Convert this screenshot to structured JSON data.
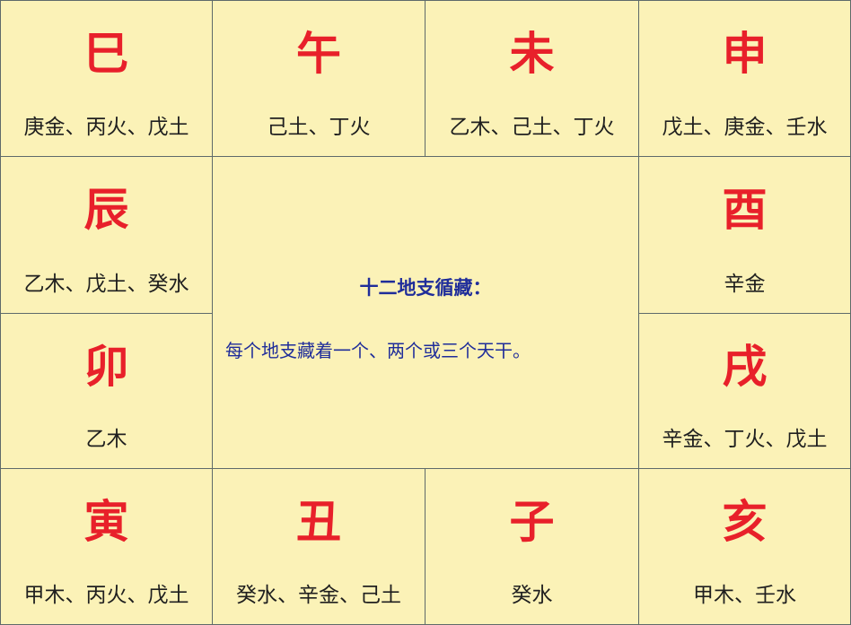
{
  "title": "十二地支循藏：",
  "description": "每个地支藏着一个、两个或三个天干。",
  "branches": {
    "si": {
      "name": "巳",
      "stems": "庚金、丙火、戊土"
    },
    "wu": {
      "name": "午",
      "stems": "己土、丁火"
    },
    "wei": {
      "name": "未",
      "stems": "乙木、己土、丁火"
    },
    "shen": {
      "name": "申",
      "stems": "戊土、庚金、壬水"
    },
    "chen": {
      "name": "辰",
      "stems": "乙木、戊土、癸水"
    },
    "you": {
      "name": "酉",
      "stems": "辛金"
    },
    "mao": {
      "name": "卯",
      "stems": "乙木"
    },
    "xu": {
      "name": "戌",
      "stems": "辛金、丁火、戊土"
    },
    "yin": {
      "name": "寅",
      "stems": "甲木、丙火、戊土"
    },
    "chou": {
      "name": "丑",
      "stems": "癸水、辛金、己土"
    },
    "zi": {
      "name": "子",
      "stems": "癸水"
    },
    "hai": {
      "name": "亥",
      "stems": "甲木、壬水"
    }
  },
  "colors": {
    "background": "#fbf2b7",
    "branch_text": "#e8202a",
    "stem_text": "#1f1f1f",
    "center_text": "#1f2d9a",
    "border": "#5e6a6a"
  }
}
